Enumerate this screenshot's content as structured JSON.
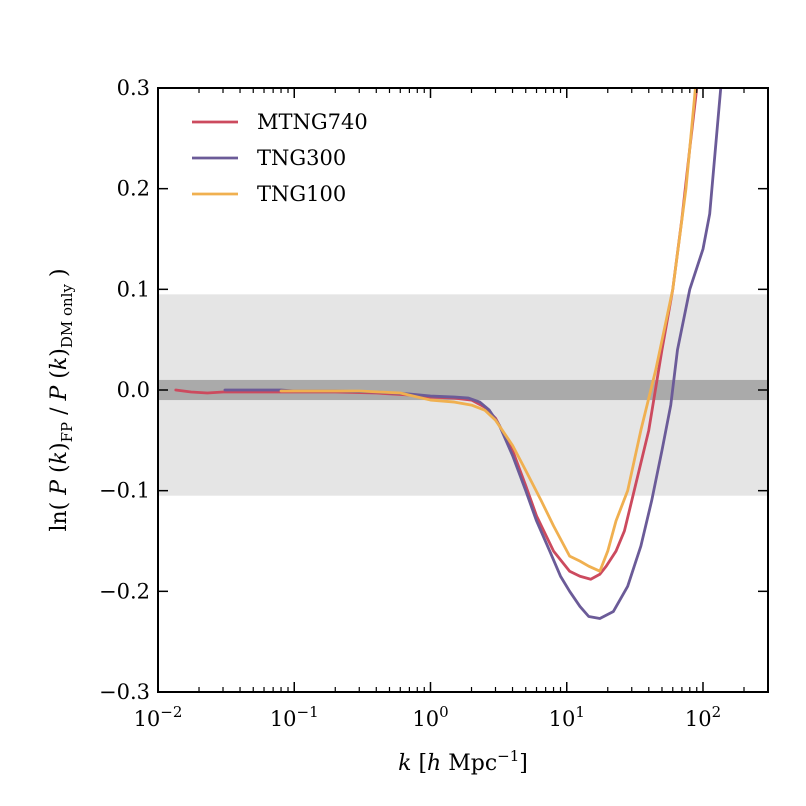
{
  "chart_data": {
    "type": "line",
    "xscale": "log",
    "xlim": [
      0.01,
      300
    ],
    "ylim": [
      -0.3,
      0.3
    ],
    "xlabel": "k [h Mpc⁻¹]",
    "ylabel": "ln( P(k)_FP / P(k)_DM only )",
    "x_ticks": [
      {
        "value": 0.01,
        "base": "10",
        "exp": "−2"
      },
      {
        "value": 0.1,
        "base": "10",
        "exp": "−1"
      },
      {
        "value": 1,
        "base": "10",
        "exp": "0"
      },
      {
        "value": 10,
        "base": "10",
        "exp": "1"
      },
      {
        "value": 100,
        "base": "10",
        "exp": "2"
      }
    ],
    "y_ticks": [
      {
        "value": 0.3,
        "label": "0.3"
      },
      {
        "value": 0.2,
        "label": "0.2"
      },
      {
        "value": 0.1,
        "label": "0.1"
      },
      {
        "value": 0.0,
        "label": "0.0"
      },
      {
        "value": -0.1,
        "label": "−0.1"
      },
      {
        "value": -0.2,
        "label": "−0.2"
      },
      {
        "value": -0.3,
        "label": "−0.3"
      }
    ],
    "bands": [
      {
        "name": "outer-band",
        "y0": -0.105,
        "y1": 0.095,
        "color": "#e5e5e5"
      },
      {
        "name": "inner-band",
        "y0": -0.01,
        "y1": 0.01,
        "color": "#aaaaaa"
      }
    ],
    "legend_position": "top-left",
    "series": [
      {
        "name": "MTNG740",
        "color": "#cc4a5e",
        "x": [
          0.0135,
          0.0175,
          0.023,
          0.03,
          0.04,
          0.06,
          0.1,
          0.2,
          0.4,
          0.7,
          1.0,
          1.5,
          2.0,
          2.5,
          3.0,
          4.0,
          5.0,
          6.0,
          8.0,
          10.5,
          12.5,
          15.0,
          17.5,
          19.5,
          23.0,
          26.5,
          30.0,
          40.0,
          50.0,
          60.0,
          70.0,
          80.0,
          90.0
        ],
        "y": [
          0.0,
          -0.002,
          -0.003,
          -0.002,
          -0.002,
          -0.002,
          -0.002,
          -0.002,
          -0.003,
          -0.005,
          -0.007,
          -0.008,
          -0.01,
          -0.017,
          -0.028,
          -0.06,
          -0.095,
          -0.125,
          -0.16,
          -0.18,
          -0.185,
          -0.188,
          -0.183,
          -0.175,
          -0.16,
          -0.14,
          -0.11,
          -0.04,
          0.04,
          0.1,
          0.17,
          0.24,
          0.3
        ]
      },
      {
        "name": "TNG300",
        "color": "#6b5b98",
        "x": [
          0.031,
          0.08,
          0.1,
          0.2,
          0.4,
          0.7,
          1.0,
          1.5,
          1.9,
          2.3,
          2.7,
          3.2,
          4.0,
          5.0,
          6.0,
          7.5,
          9.0,
          10.5,
          12.5,
          14.5,
          17.5,
          22.0,
          28.0,
          35.0,
          42.0,
          50.0,
          58.0,
          65.0,
          80.0,
          100.0,
          112.0,
          135.0
        ],
        "y": [
          0.0,
          0.0,
          -0.001,
          -0.001,
          -0.002,
          -0.004,
          -0.006,
          -0.007,
          -0.008,
          -0.012,
          -0.02,
          -0.035,
          -0.065,
          -0.1,
          -0.13,
          -0.16,
          -0.185,
          -0.2,
          -0.215,
          -0.225,
          -0.227,
          -0.22,
          -0.195,
          -0.155,
          -0.11,
          -0.06,
          -0.015,
          0.04,
          0.1,
          0.14,
          0.175,
          0.3
        ]
      },
      {
        "name": "TNG100",
        "color": "#f0b050",
        "x": [
          0.08,
          0.15,
          0.3,
          0.6,
          1.0,
          1.5,
          2.0,
          2.5,
          3.0,
          4.0,
          5.0,
          6.5,
          8.0,
          10.5,
          12.5,
          14.5,
          17.5,
          20.0,
          23.0,
          28.0,
          35.0,
          45.0,
          60.0,
          75.0,
          88.0
        ],
        "y": [
          -0.001,
          -0.001,
          -0.001,
          -0.003,
          -0.01,
          -0.012,
          -0.015,
          -0.02,
          -0.03,
          -0.055,
          -0.08,
          -0.11,
          -0.135,
          -0.165,
          -0.17,
          -0.175,
          -0.18,
          -0.16,
          -0.13,
          -0.1,
          -0.04,
          0.02,
          0.1,
          0.2,
          0.3
        ]
      }
    ]
  }
}
